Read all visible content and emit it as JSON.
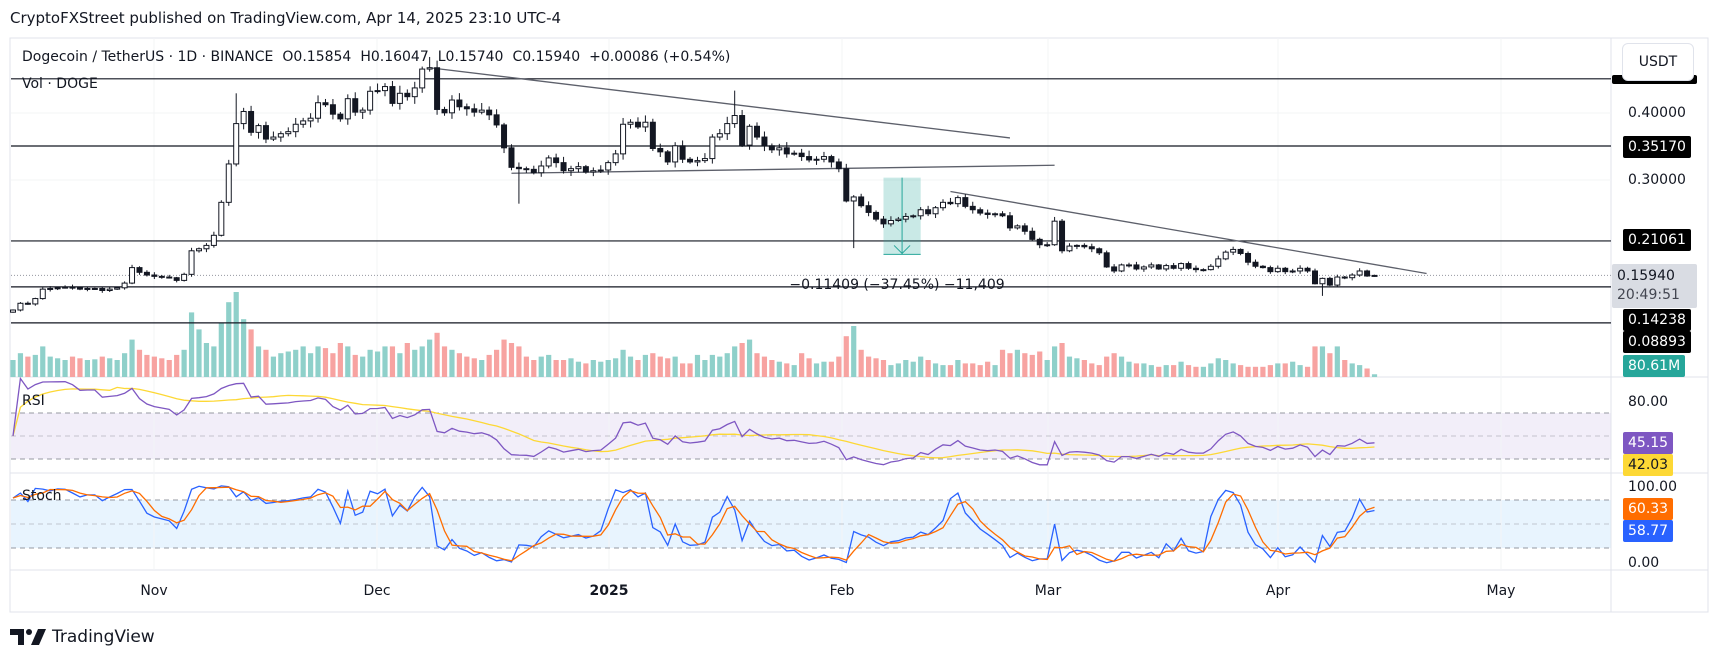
{
  "header": {
    "title": "CryptoFXStreet published on TradingView.com, Apr 14, 2025 23:10 UTC-4"
  },
  "legend": {
    "symbol": "Dogecoin / TetherUS · 1D · BINANCE",
    "open": "O0.15854",
    "high": "H0.16047",
    "low": "L0.15740",
    "close": "C0.15940",
    "change": "+0.00086 (+0.54%)",
    "volume_label": "Vol · DOGE"
  },
  "panes": {
    "rsi_label": "RSI",
    "stoch_label": "Stoch"
  },
  "price_axis": {
    "currency_button": "USDT",
    "ticks": [
      "0.40000",
      "0.30000"
    ],
    "levels": [
      "0.35170",
      "0.21061",
      "0.14238",
      "0.08893"
    ],
    "current_price": "0.15940",
    "countdown": "20:49:51",
    "volume_value": "80.61M",
    "rsi_ticks": [
      "80.00"
    ],
    "rsi_value": "45.15",
    "rsi_ma_value": "42.03",
    "stoch_ticks": [
      "100.00",
      "0.00"
    ],
    "stoch_d_value": "60.33",
    "stoch_k_value": "58.77"
  },
  "time_axis": [
    "Nov",
    "Dec",
    "2025",
    "Feb",
    "Mar",
    "Apr",
    "May"
  ],
  "measure": {
    "label": "−0.11409 (−37.45%) −11,409"
  },
  "footer": {
    "brand": "TradingView"
  },
  "colors": {
    "up_volume": "#8fd0ca",
    "down_volume": "#f7a3a1",
    "rsi": "#7e57c2",
    "rsi_ma": "#fdd835",
    "stoch_k": "#2962ff",
    "stoch_d": "#ff6d00",
    "measure": "#26a69a"
  },
  "chart_data": {
    "type": "candlestick",
    "symbol": "DOGEUSDT",
    "interval": "1D",
    "scale": "linear",
    "ylim": [
      0.08,
      0.47
    ],
    "candles_by_month": [
      {
        "month": "Oct 2024",
        "first_day": 13,
        "close": [
          0.108,
          0.118,
          0.117,
          0.125,
          0.139,
          0.14,
          0.141,
          0.142,
          0.141,
          0.139,
          0.14,
          0.14,
          0.137,
          0.139,
          0.141,
          0.148,
          0.171,
          0.164,
          0.16
        ],
        "volume_m": [
          500,
          700,
          600,
          650,
          900,
          600,
          550,
          500,
          600,
          550,
          500,
          520,
          600,
          550,
          500,
          700,
          1100,
          800,
          650
        ]
      },
      {
        "month": "Nov 2024",
        "first_day": 1,
        "close": [
          0.158,
          0.157,
          0.156,
          0.152,
          0.161,
          0.196,
          0.199,
          0.204,
          0.219,
          0.268,
          0.325,
          0.385,
          0.403,
          0.372,
          0.382,
          0.362,
          0.365,
          0.37,
          0.373,
          0.384,
          0.389,
          0.393,
          0.416,
          0.413,
          0.399,
          0.392,
          0.422,
          0.402,
          0.405,
          0.433
        ],
        "volume_m": [
          600,
          550,
          500,
          650,
          800,
          1900,
          1400,
          1000,
          900,
          1600,
          2200,
          2500,
          1700,
          1400,
          900,
          800,
          600,
          700,
          750,
          800,
          900,
          700,
          900,
          850,
          700,
          1000,
          900,
          650,
          600,
          800
        ]
      },
      {
        "month": "Dec 2024",
        "first_day": 1,
        "close": [
          0.434,
          0.44,
          0.415,
          0.43,
          0.425,
          0.438,
          0.466,
          0.468,
          0.406,
          0.401,
          0.42,
          0.41,
          0.407,
          0.402,
          0.405,
          0.398,
          0.383,
          0.349,
          0.32,
          0.318,
          0.317,
          0.312,
          0.322,
          0.334,
          0.327,
          0.315,
          0.318,
          0.321,
          0.313,
          0.315,
          0.316
        ],
        "volume_m": [
          750,
          900,
          900,
          700,
          1000,
          800,
          900,
          1100,
          1300,
          900,
          800,
          700,
          600,
          550,
          500,
          650,
          800,
          1100,
          1000,
          900,
          600,
          500,
          600,
          650,
          500,
          500,
          550,
          450,
          400,
          500,
          450
        ]
      },
      {
        "month": "Jan 2025",
        "first_day": 1,
        "close": [
          0.327,
          0.34,
          0.384,
          0.387,
          0.38,
          0.387,
          0.348,
          0.343,
          0.328,
          0.352,
          0.332,
          0.328,
          0.33,
          0.333,
          0.365,
          0.37,
          0.385,
          0.397,
          0.353,
          0.381,
          0.365,
          0.352,
          0.346,
          0.349,
          0.34,
          0.341,
          0.336,
          0.331,
          0.332,
          0.336,
          0.328
        ],
        "volume_m": [
          500,
          550,
          800,
          600,
          500,
          650,
          700,
          600,
          550,
          600,
          400,
          400,
          650,
          500,
          650,
          600,
          700,
          900,
          1000,
          1100,
          700,
          600,
          500,
          450,
          400,
          350,
          700,
          550,
          400,
          450,
          450
        ]
      },
      {
        "month": "Feb 2025",
        "first_day": 1,
        "close": [
          0.318,
          0.27,
          0.276,
          0.263,
          0.253,
          0.243,
          0.236,
          0.241,
          0.243,
          0.247,
          0.248,
          0.257,
          0.251,
          0.26,
          0.268,
          0.266,
          0.275,
          0.262,
          0.257,
          0.252,
          0.25,
          0.251,
          0.248,
          0.23,
          0.233,
          0.225,
          0.213,
          0.205
        ],
        "volume_m": [
          600,
          1200,
          1500,
          800,
          600,
          550,
          500,
          350,
          400,
          500,
          450,
          600,
          500,
          400,
          350,
          350,
          500,
          400,
          400,
          350,
          450,
          350,
          800,
          700,
          800,
          700,
          650,
          750
        ]
      },
      {
        "month": "Mar 2025",
        "first_day": 1,
        "close": [
          0.205,
          0.24,
          0.196,
          0.203,
          0.204,
          0.202,
          0.199,
          0.193,
          0.172,
          0.166,
          0.175,
          0.175,
          0.169,
          0.172,
          0.175,
          0.169,
          0.174,
          0.17,
          0.177,
          0.17,
          0.168,
          0.168,
          0.173,
          0.184,
          0.194,
          0.198,
          0.192,
          0.179,
          0.173,
          0.171,
          0.165
        ],
        "volume_m": [
          500,
          900,
          1000,
          600,
          550,
          500,
          400,
          350,
          600,
          700,
          600,
          450,
          400,
          400,
          350,
          300,
          350,
          350,
          450,
          350,
          300,
          300,
          400,
          550,
          500,
          400,
          350,
          300,
          300,
          300,
          350
        ]
      },
      {
        "month": "Apr 2025",
        "first_day": 1,
        "close": [
          0.17,
          0.165,
          0.166,
          0.17,
          0.166,
          0.147,
          0.155,
          0.145,
          0.157,
          0.156,
          0.16,
          0.166,
          0.15854,
          0.1594
        ],
        "volume_m": [
          400,
          400,
          450,
          350,
          300,
          900,
          900,
          700,
          900,
          500,
          400,
          350,
          250,
          80.61
        ]
      }
    ],
    "notable_wicks": [
      {
        "date": "Nov 12 2024",
        "high": 0.43
      },
      {
        "date": "Dec 8 2024",
        "high": 0.484
      },
      {
        "date": "Dec 20 2024",
        "low": 0.266
      },
      {
        "date": "Jan 18 2025",
        "high": 0.434
      },
      {
        "date": "Feb 3 2025",
        "low": 0.2
      },
      {
        "date": "Apr 7 2025",
        "low": 0.129
      },
      {
        "date": "Apr 14 2025",
        "high": 0.16047,
        "low": 0.1574
      }
    ],
    "horizontal_levels": [
      0.4515,
      0.3517,
      0.21061,
      0.14238,
      0.08893
    ],
    "trendlines": [
      {
        "from": [
          "Dec 8 2024",
          0.468
        ],
        "to": [
          "Feb 24 2025",
          0.3637
        ]
      },
      {
        "from": [
          "Dec 19 2024",
          0.3112
        ],
        "to": [
          "Mar 2 2025",
          0.3231
        ]
      },
      {
        "from": [
          "Feb 16 2025",
          0.2841
        ],
        "to": [
          "Apr 21 2025",
          0.1623
        ]
      }
    ],
    "measure": {
      "from": [
        "Feb 7 2025",
        0.3047
      ],
      "to": [
        "Feb 12 2025",
        0.1906
      ],
      "change": -0.11409,
      "change_pct": -37.45
    },
    "rsi": {
      "length": 14,
      "ma_length": 14,
      "bands": [
        70,
        50,
        30
      ],
      "ylim": [
        0,
        100
      ]
    },
    "stoch": {
      "k": 14,
      "smooth": 1,
      "d": 3,
      "bands": [
        80,
        50,
        20
      ],
      "ylim": [
        0,
        100
      ]
    }
  }
}
